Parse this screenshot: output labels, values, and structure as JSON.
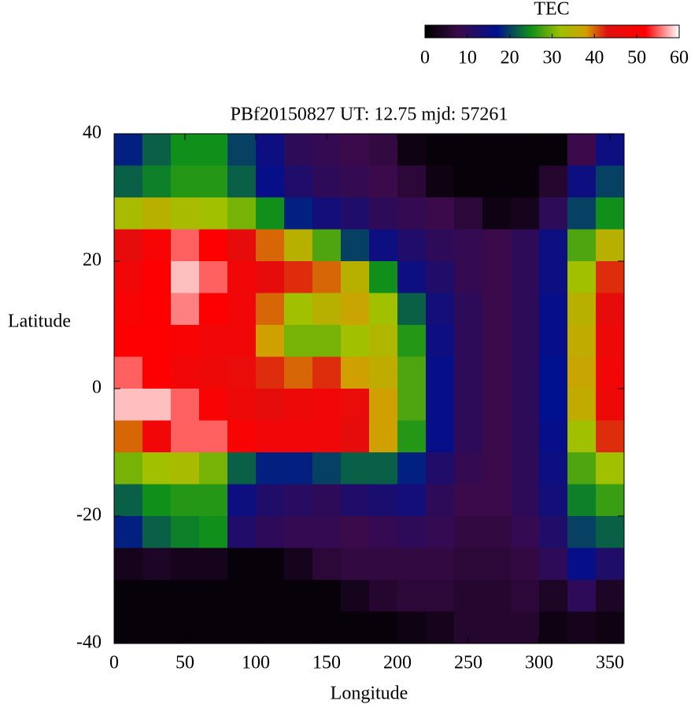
{
  "chart_data": {
    "type": "heatmap",
    "title": "PBf20150827  UT: 12.75  mjd: 57261",
    "x_label": "Longitude",
    "y_label": "Latitude",
    "colorbar_label": "TEC",
    "x": [
      10,
      30,
      50,
      70,
      90,
      110,
      130,
      150,
      170,
      190,
      210,
      230,
      250,
      270,
      290,
      310,
      330,
      350
    ],
    "y": [
      37.5,
      32.5,
      27.5,
      22.5,
      17.5,
      12.5,
      7.5,
      2.5,
      -2.5,
      -7.5,
      -12.5,
      -17.5,
      -22.5,
      -27.5,
      -32.5,
      -37.5
    ],
    "z": [
      [
        18,
        22,
        25,
        25,
        20,
        15,
        10,
        9,
        8,
        7,
        2,
        1,
        1,
        1,
        1,
        1,
        8,
        15
      ],
      [
        22,
        24,
        26,
        26,
        22,
        16,
        12,
        10,
        9,
        8,
        6,
        2,
        1,
        1,
        1,
        5,
        15,
        20
      ],
      [
        33,
        35,
        33,
        32,
        30,
        25,
        18,
        14,
        12,
        10,
        9,
        8,
        6,
        2,
        3,
        10,
        20,
        25
      ],
      [
        45,
        50,
        55,
        52,
        45,
        40,
        35,
        28,
        20,
        15,
        12,
        10,
        9,
        8,
        10,
        15,
        28,
        35
      ],
      [
        48,
        52,
        58,
        55,
        48,
        45,
        42,
        40,
        35,
        25,
        15,
        12,
        9,
        8,
        10,
        15,
        32,
        42
      ],
      [
        50,
        52,
        56,
        52,
        48,
        40,
        32,
        35,
        37,
        32,
        22,
        14,
        10,
        8,
        10,
        16,
        35,
        45
      ],
      [
        52,
        52,
        50,
        48,
        48,
        38,
        30,
        30,
        32,
        34,
        26,
        15,
        10,
        8,
        10,
        16,
        36,
        47
      ],
      [
        55,
        52,
        48,
        47,
        46,
        42,
        40,
        42,
        38,
        36,
        28,
        16,
        10,
        8,
        10,
        17,
        37,
        48
      ],
      [
        58,
        58,
        55,
        50,
        47,
        45,
        47,
        48,
        46,
        38,
        28,
        16,
        10,
        8,
        10,
        17,
        36,
        47
      ],
      [
        40,
        48,
        55,
        55,
        50,
        48,
        48,
        48,
        45,
        38,
        26,
        16,
        10,
        8,
        10,
        16,
        32,
        42
      ],
      [
        30,
        32,
        33,
        30,
        22,
        18,
        18,
        20,
        22,
        22,
        18,
        12,
        9,
        8,
        10,
        15,
        28,
        32
      ],
      [
        22,
        25,
        26,
        26,
        15,
        12,
        11,
        10,
        12,
        13,
        14,
        10,
        8,
        8,
        10,
        14,
        24,
        27
      ],
      [
        18,
        22,
        24,
        25,
        12,
        10,
        9,
        9,
        8,
        9,
        10,
        9,
        7,
        7,
        9,
        12,
        20,
        22
      ],
      [
        3,
        4,
        3,
        3,
        1,
        1,
        3,
        6,
        7,
        7,
        7,
        7,
        6,
        6,
        7,
        10,
        16,
        12
      ],
      [
        1,
        1,
        1,
        1,
        1,
        1,
        1,
        1,
        3,
        5,
        6,
        6,
        5,
        5,
        6,
        4,
        10,
        4
      ],
      [
        1,
        1,
        1,
        1,
        1,
        1,
        1,
        1,
        1,
        1,
        2,
        3,
        5,
        5,
        5,
        2,
        3,
        2
      ]
    ],
    "xlim": [
      0,
      360
    ],
    "xticks": [
      0,
      50,
      100,
      150,
      200,
      250,
      300,
      350
    ],
    "ylim": [
      -40,
      40
    ],
    "yticks": [
      -40,
      -20,
      0,
      20,
      40
    ],
    "cblim": [
      0,
      60
    ],
    "cbticks": [
      0,
      10,
      20,
      30,
      40,
      50,
      60
    ],
    "colormap": [
      {
        "value": 0,
        "color": "#000000"
      },
      {
        "value": 8,
        "color": "#3a0a4a"
      },
      {
        "value": 17,
        "color": "#00108f"
      },
      {
        "value": 25,
        "color": "#10901a"
      },
      {
        "value": 32,
        "color": "#a0c000"
      },
      {
        "value": 38,
        "color": "#d0a000"
      },
      {
        "value": 43,
        "color": "#e01010"
      },
      {
        "value": 52,
        "color": "#ff0000"
      },
      {
        "value": 60,
        "color": "#ffffff"
      }
    ]
  }
}
